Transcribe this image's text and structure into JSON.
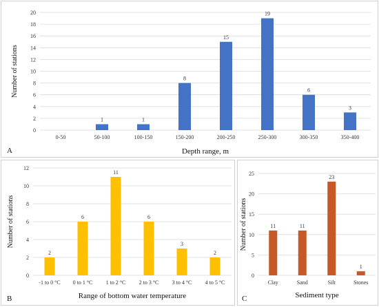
{
  "chart_data": [
    {
      "type": "bar",
      "panel_label": "A",
      "categories": [
        "0-50",
        "50-100",
        "100-150",
        "150-200",
        "200-250",
        "250-300",
        "300-350",
        "350-400"
      ],
      "values": [
        0,
        1,
        1,
        8,
        15,
        19,
        6,
        3
      ],
      "data_labels": [
        "",
        "1",
        "1",
        "8",
        "15",
        "19",
        "6",
        "3"
      ],
      "xlabel": "Depth range, m",
      "ylabel": "Number of stations",
      "ylim": [
        0,
        20
      ],
      "yticks": [
        0,
        2,
        4,
        6,
        8,
        10,
        12,
        14,
        16,
        18,
        20
      ],
      "color": "#4472C4",
      "grid": true,
      "legend": "none"
    },
    {
      "type": "bar",
      "panel_label": "B",
      "categories": [
        "-1 to 0 °C",
        "0 to 1 °C",
        "1 to 2 °C",
        "2 to 3 °C",
        "3 to 4 °C",
        "4 to 5 °C"
      ],
      "values": [
        2,
        6,
        11,
        6,
        3,
        2
      ],
      "data_labels": [
        "2",
        "6",
        "11",
        "6",
        "3",
        "2"
      ],
      "xlabel": "Range of bottom water temperature",
      "ylabel": "Number of stations",
      "ylim": [
        0,
        12
      ],
      "yticks": [
        0,
        2,
        4,
        6,
        8,
        10,
        12
      ],
      "color": "#FFC000",
      "grid": true,
      "legend": "none"
    },
    {
      "type": "bar",
      "panel_label": "C",
      "categories": [
        "Clay",
        "Sand",
        "Silt",
        "Stones"
      ],
      "values": [
        11,
        11,
        23,
        1
      ],
      "data_labels": [
        "11",
        "11",
        "23",
        "1"
      ],
      "xlabel": "Sediment type",
      "ylabel": "Number of stations",
      "ylim": [
        0,
        25
      ],
      "yticks": [
        0,
        5,
        10,
        15,
        20,
        25
      ],
      "color": "#C55A28",
      "grid": true,
      "legend": "none"
    }
  ]
}
